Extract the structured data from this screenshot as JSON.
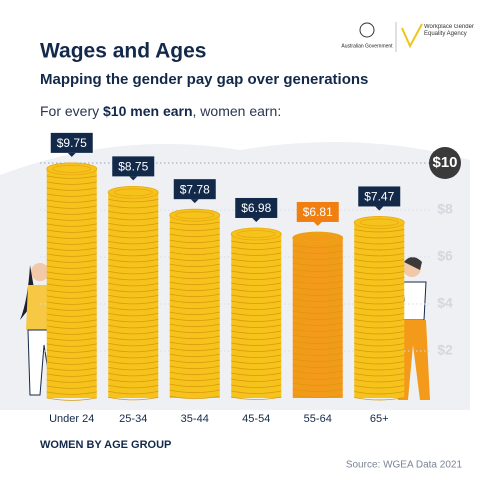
{
  "chart_data": {
    "type": "bar",
    "title": "Wages and Ages",
    "subtitle": "Mapping the gender pay gap over generations",
    "lead": {
      "pre": "For every",
      "bold": "$10 men earn",
      "post": ", women earn:"
    },
    "logos": [
      "Australian Government",
      "Workplace Gender Equality Agency"
    ],
    "categories": [
      "Under 24",
      "25-34",
      "35-44",
      "45-54",
      "55-64",
      "65+"
    ],
    "values": [
      9.75,
      8.75,
      7.78,
      6.98,
      6.81,
      7.47
    ],
    "value_labels": [
      "$9.75",
      "$8.75",
      "$7.78",
      "$6.98",
      "$6.81",
      "$7.47"
    ],
    "colors": [
      "#f6c21c",
      "#f6c21c",
      "#f6c21c",
      "#f6c21c",
      "#f39a1b",
      "#f6c21c"
    ],
    "label_colors": [
      "#12294a",
      "#12294a",
      "#12294a",
      "#12294a",
      "#f07f12",
      "#12294a"
    ],
    "ylim": [
      0,
      10
    ],
    "yticks": [
      {
        "value": 10,
        "label": "$10"
      },
      {
        "value": 8,
        "label": "$8"
      },
      {
        "value": 6,
        "label": "$6"
      },
      {
        "value": 4,
        "label": "$4"
      },
      {
        "value": 2,
        "label": "$2"
      }
    ],
    "xlabel": "WOMEN BY AGE GROUP",
    "source": "Source: WGEA Data 2021",
    "grid": true
  }
}
